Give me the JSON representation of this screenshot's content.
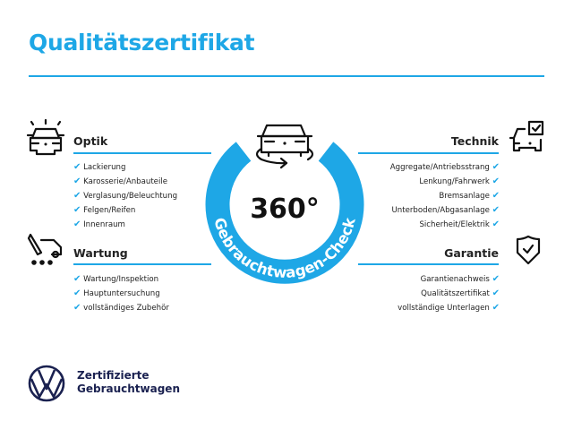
{
  "title": "Qualitätszertifikat",
  "accent_color": "#1ea7e6",
  "center": {
    "degrees": "360°",
    "ring_text": "Gebrauchtwagen-Check",
    "icon": "car-rotate-icon"
  },
  "sections": {
    "optik": {
      "heading": "Optik",
      "icon": "car-lights-icon",
      "items": [
        "Lackierung",
        "Karosserie/Anbauteile",
        "Verglasung/Beleuchtung",
        "Felgen/Reifen",
        "Innenraum"
      ]
    },
    "wartung": {
      "heading": "Wartung",
      "icon": "service-van-icon",
      "items": [
        "Wartung/Inspektion",
        "Hauptuntersuchung",
        "vollständiges Zubehör"
      ]
    },
    "technik": {
      "heading": "Technik",
      "icon": "car-checkbox-icon",
      "items": [
        "Aggregate/Antriebsstrang",
        "Lenkung/Fahrwerk",
        "Bremsanlage",
        "Unterboden/Abgasanlage",
        "Sicherheit/Elektrik"
      ]
    },
    "garantie": {
      "heading": "Garantie",
      "icon": "shield-check-icon",
      "items": [
        "Garantienachweis",
        "Qualitätszertifikat",
        "vollständige Unterlagen"
      ]
    }
  },
  "check_mark": "✔",
  "brand": {
    "logo": "vw-logo",
    "line1": "Zertifizierte",
    "line2": "Gebrauchtwagen"
  }
}
